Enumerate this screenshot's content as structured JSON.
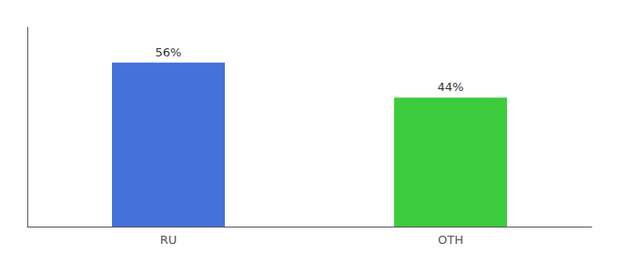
{
  "chart_data": {
    "type": "bar",
    "categories": [
      "RU",
      "OTH"
    ],
    "values": [
      56,
      44
    ],
    "value_labels": [
      "56%",
      "44%"
    ],
    "colors": [
      "#4472db",
      "#3dcc3d"
    ],
    "ylim": [
      0,
      68
    ],
    "grid": false,
    "data_labels": true,
    "tick_labels": "x"
  }
}
